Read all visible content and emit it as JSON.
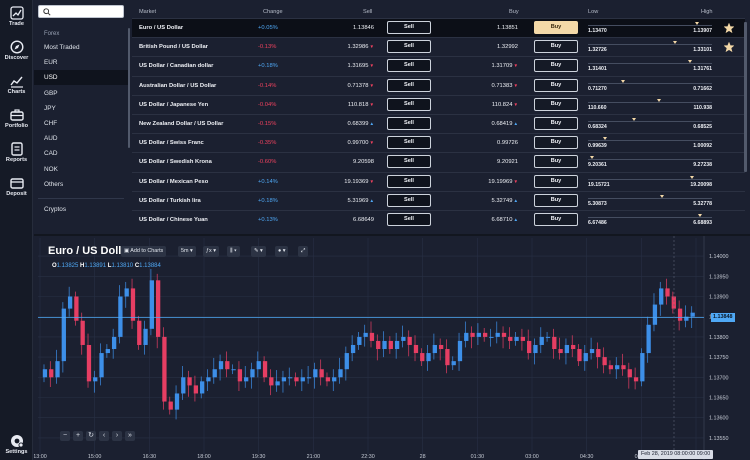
{
  "nav": {
    "items": [
      {
        "label": "Trade",
        "icon": "trend-up-icon"
      },
      {
        "label": "Discover",
        "icon": "compass-icon"
      },
      {
        "label": "Charts",
        "icon": "chart-icon"
      },
      {
        "label": "Portfolio",
        "icon": "briefcase-icon"
      },
      {
        "label": "Reports",
        "icon": "reports-icon"
      },
      {
        "label": "Deposit",
        "icon": "wallet-icon"
      }
    ],
    "settings_label": "Settings"
  },
  "categories": {
    "search_placeholder": "",
    "heading": "Forex",
    "items": [
      "Most Traded",
      "EUR",
      "USD",
      "GBP",
      "JPY",
      "CHF",
      "AUD",
      "CAD",
      "NOK",
      "Others"
    ],
    "selected": "USD",
    "extra": "Cryptos"
  },
  "table": {
    "headers": {
      "market": "Market",
      "change": "Change",
      "sell": "Sell",
      "buy": "Buy",
      "low": "Low",
      "high": "High"
    },
    "sell_label": "Sell",
    "buy_label": "Buy",
    "rows": [
      {
        "market": "Euro / US Dollar",
        "change": "+0.05%",
        "dir": "pos",
        "sell": "1.13846",
        "sell_dir": "none",
        "buy": "1.13851",
        "buy_dir": "none",
        "low": "1.13470",
        "high": "1.13907",
        "range_pos": 0.88,
        "starred": true
      },
      {
        "market": "British Pound / US Dollar",
        "change": "-0.13%",
        "dir": "neg",
        "sell": "1.32986",
        "sell_dir": "neg",
        "buy": "1.32992",
        "buy_dir": "none",
        "low": "1.32726",
        "high": "1.33101",
        "range_pos": 0.7,
        "starred": true
      },
      {
        "market": "US Dollar / Canadian dollar",
        "change": "+0.18%",
        "dir": "pos",
        "sell": "1.31695",
        "sell_dir": "neg",
        "buy": "1.31709",
        "buy_dir": "neg",
        "low": "1.31401",
        "high": "1.31761",
        "range_pos": 0.82,
        "starred": false
      },
      {
        "market": "Australian Dollar / US Dollar",
        "change": "-0.14%",
        "dir": "neg",
        "sell": "0.71378",
        "sell_dir": "neg",
        "buy": "0.71383",
        "buy_dir": "neg",
        "low": "0.71270",
        "high": "0.71662",
        "range_pos": 0.28,
        "starred": false
      },
      {
        "market": "US Dollar / Japanese Yen",
        "change": "-0.04%",
        "dir": "neg",
        "sell": "110.818",
        "sell_dir": "neg",
        "buy": "110.824",
        "buy_dir": "neg",
        "low": "110.660",
        "high": "110.938",
        "range_pos": 0.57,
        "starred": false
      },
      {
        "market": "New Zealand Dollar / US Dollar",
        "change": "-0.15%",
        "dir": "neg",
        "sell": "0.68399",
        "sell_dir": "pos",
        "buy": "0.68419",
        "buy_dir": "pos",
        "low": "0.68324",
        "high": "0.68525",
        "range_pos": 0.37,
        "starred": false
      },
      {
        "market": "US Dollar / Swiss Franc",
        "change": "-0.35%",
        "dir": "neg",
        "sell": "0.99700",
        "sell_dir": "neg",
        "buy": "0.99726",
        "buy_dir": "none",
        "low": "0.99639",
        "high": "1.00092",
        "range_pos": 0.14,
        "starred": false
      },
      {
        "market": "US Dollar / Swedish Krona",
        "change": "-0.60%",
        "dir": "neg",
        "sell": "9.20598",
        "sell_dir": "none",
        "buy": "9.20921",
        "buy_dir": "none",
        "low": "9.20361",
        "high": "9.27238",
        "range_pos": 0.03,
        "starred": false
      },
      {
        "market": "US Dollar / Mexican Peso",
        "change": "+0.14%",
        "dir": "pos",
        "sell": "19.19369",
        "sell_dir": "neg",
        "buy": "19.19969",
        "buy_dir": "neg",
        "low": "19.15721",
        "high": "19.20098",
        "range_pos": 0.84,
        "starred": false
      },
      {
        "market": "US Dollar / Turkish lira",
        "change": "+0.18%",
        "dir": "pos",
        "sell": "5.31969",
        "sell_dir": "pos",
        "buy": "5.32749",
        "buy_dir": "pos",
        "low": "5.30873",
        "high": "5.32778",
        "range_pos": 0.6,
        "starred": false
      },
      {
        "market": "US Dollar / Chinese Yuan",
        "change": "+0.13%",
        "dir": "pos",
        "sell": "6.68649",
        "sell_dir": "none",
        "buy": "6.68710",
        "buy_dir": "pos",
        "low": "6.67486",
        "high": "6.68893",
        "range_pos": 0.9,
        "starred": false
      }
    ]
  },
  "chart": {
    "title": "Euro / US Dollar",
    "toolbar": {
      "add": "Add to Charts",
      "interval": "5m"
    },
    "ohlc": {
      "o": "1.13825",
      "h": "1.13891",
      "l": "1.13810",
      "c": "1.13884"
    },
    "current_price": "1.13848",
    "crosshair_date": "Feb 28, 2019 08:00:00 09:00",
    "colors": {
      "up": "#3d8fe8",
      "down": "#e63e63",
      "grid": "#283044",
      "price_line": "#4fa8f5"
    }
  },
  "chart_data": {
    "type": "candlestick",
    "title": "Euro / US Dollar",
    "x_ticks": [
      "13:00",
      "15:00",
      "16:30",
      "18:00",
      "19:30",
      "21:00",
      "22:30",
      "28",
      "01:30",
      "03:00",
      "04:30",
      "06:00",
      "09:00"
    ],
    "y_ticks": [
      "1.14000",
      "1.13950",
      "1.13900",
      "1.13850",
      "1.13800",
      "1.13750",
      "1.13700",
      "1.13650",
      "1.13600",
      "1.13550"
    ],
    "ylim": [
      1.1353,
      1.1402
    ],
    "series": [
      {
        "close": [
          1.1372,
          1.137,
          1.1374,
          1.1387,
          1.139,
          1.1384,
          1.1378,
          1.1369,
          1.137,
          1.1376,
          1.1377,
          1.138,
          1.139,
          1.1392,
          1.1384,
          1.1378,
          1.1382,
          1.1394,
          1.138,
          1.1364,
          1.1362,
          1.1366,
          1.137,
          1.1368,
          1.1366,
          1.1369,
          1.137,
          1.1372,
          1.1374,
          1.1372,
          1.1372,
          1.1369,
          1.137,
          1.1372,
          1.1374,
          1.137,
          1.1368,
          1.1369,
          1.137,
          1.137,
          1.1369,
          1.137,
          1.137,
          1.1372,
          1.137,
          1.1369,
          1.137,
          1.1372,
          1.1376,
          1.1378,
          1.138,
          1.1381,
          1.1379,
          1.1377,
          1.1379,
          1.1377,
          1.1379,
          1.138,
          1.1378,
          1.1376,
          1.1374,
          1.1376,
          1.1378,
          1.1377,
          1.1373,
          1.1374,
          1.1379,
          1.1381,
          1.138,
          1.1381,
          1.138,
          1.138,
          1.1381,
          1.138,
          1.1379,
          1.138,
          1.1379,
          1.1376,
          1.1378,
          1.138,
          1.138,
          1.1377,
          1.1376,
          1.1378,
          1.1377,
          1.1374,
          1.1376,
          1.1377,
          1.1375,
          1.1373,
          1.1372,
          1.1373,
          1.1372,
          1.137,
          1.1369,
          1.1376,
          1.1383,
          1.1388,
          1.1392,
          1.139,
          1.1387,
          1.1384,
          1.1385,
          1.1386
        ]
      }
    ],
    "current": 1.13848
  }
}
